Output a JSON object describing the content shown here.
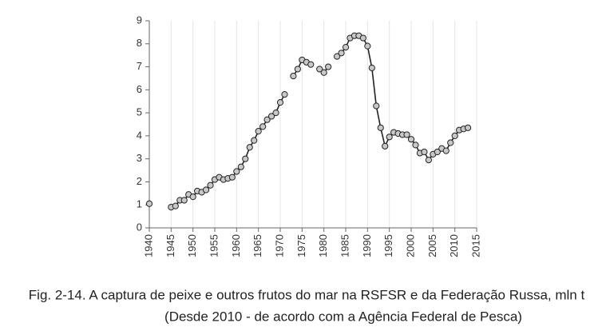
{
  "chart_data": {
    "type": "line",
    "caption": [
      "Fig. 2-14. A captura de peixe e outros frutos do mar na RSFSR e da Federação Russa, mln t",
      "(Desde 2010 - de acordo com a Agência Federal de Pesca)"
    ],
    "x": [
      1940,
      1941,
      1942,
      1943,
      1944,
      1945,
      1946,
      1947,
      1948,
      1949,
      1950,
      1951,
      1952,
      1953,
      1954,
      1955,
      1956,
      1957,
      1958,
      1959,
      1960,
      1961,
      1962,
      1963,
      1964,
      1965,
      1966,
      1967,
      1968,
      1969,
      1970,
      1971,
      1972,
      1973,
      1974,
      1975,
      1976,
      1977,
      1978,
      1979,
      1980,
      1981,
      1982,
      1983,
      1984,
      1985,
      1986,
      1987,
      1988,
      1989,
      1990,
      1991,
      1992,
      1993,
      1994,
      1995,
      1996,
      1997,
      1998,
      1999,
      2000,
      2001,
      2002,
      2003,
      2004,
      2005,
      2006,
      2007,
      2008,
      2009,
      2010,
      2011,
      2012,
      2013
    ],
    "values": [
      1.05,
      null,
      null,
      null,
      null,
      0.9,
      0.95,
      1.2,
      1.2,
      1.45,
      1.35,
      1.6,
      1.55,
      1.65,
      1.85,
      2.1,
      2.2,
      2.1,
      2.15,
      2.2,
      2.45,
      2.65,
      3.0,
      3.5,
      3.8,
      4.2,
      4.4,
      4.7,
      4.85,
      5.0,
      5.45,
      5.8,
      null,
      6.6,
      6.9,
      7.3,
      7.2,
      7.1,
      null,
      6.9,
      6.75,
      7.0,
      null,
      7.45,
      7.6,
      7.85,
      8.25,
      8.35,
      8.35,
      8.25,
      7.9,
      6.95,
      5.3,
      4.35,
      3.55,
      3.95,
      4.15,
      4.1,
      4.05,
      4.05,
      3.85,
      3.6,
      3.25,
      3.3,
      2.95,
      3.2,
      3.3,
      3.45,
      3.35,
      3.7,
      4.0,
      4.25,
      4.3,
      4.35
    ],
    "color": "#222222",
    "marker_color": "#c8c8c8",
    "xlim": [
      1940,
      2015
    ],
    "xticks": [
      1940,
      1945,
      1950,
      1955,
      1960,
      1965,
      1970,
      1975,
      1980,
      1985,
      1990,
      1995,
      2000,
      2005,
      2010,
      2015
    ],
    "ylim": [
      0,
      9
    ],
    "yticks": [
      0,
      1,
      2,
      3,
      4,
      5,
      6,
      7,
      8,
      9
    ],
    "grid": true
  }
}
